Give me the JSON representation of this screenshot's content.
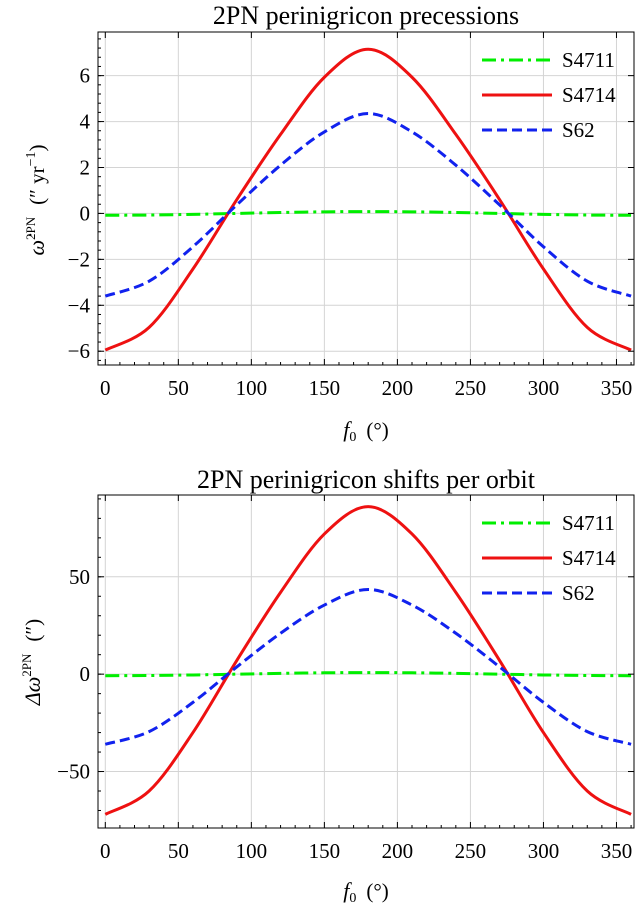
{
  "charts": [
    {
      "title": "2PN perinigricon precessions",
      "xlabel": {
        "sym": "f",
        "sub": "0",
        "unit": "(°)"
      },
      "ylabel": {
        "sym": "ω̇",
        "sup": "2PN",
        "unit_pre": "(″ yr",
        "unit_sup": "−1",
        "unit_post": ")"
      },
      "xticks": [
        "0",
        "50",
        "100",
        "150",
        "200",
        "250",
        "300",
        "350"
      ],
      "yticks": [
        "−6",
        "−4",
        "−2",
        "0",
        "2",
        "4",
        "6"
      ]
    },
    {
      "title": "2PN perinigricon shifts per orbit",
      "xlabel": {
        "sym": "f",
        "sub": "0",
        "unit": "(°)"
      },
      "ylabel": {
        "sym": "Δω",
        "sup": "2PN",
        "unit_pre": "(″)",
        "unit_sup": "",
        "unit_post": ""
      },
      "xticks": [
        "0",
        "50",
        "100",
        "150",
        "200",
        "250",
        "300",
        "350"
      ],
      "yticks": [
        "−50",
        "0",
        "50"
      ]
    }
  ],
  "legend": [
    "S4711",
    "S4714",
    "S62"
  ],
  "colors": {
    "S4711": "#00ee00",
    "S4714": "#ee1111",
    "S62": "#1122ee",
    "grid": "#d4d4d4"
  },
  "chart_data": [
    {
      "type": "line",
      "title": "2PN perinigricon precessions",
      "xlabel": "f0 (°)",
      "ylabel": "ω̇2PN (″ yr−1)",
      "xlim": [
        -5,
        362
      ],
      "ylim": [
        -6.6,
        7.9
      ],
      "xticks": [
        0,
        50,
        100,
        150,
        200,
        250,
        300,
        350
      ],
      "yticks": [
        -6,
        -4,
        -2,
        0,
        2,
        4,
        6
      ],
      "grid": true,
      "legend_position": "top-right",
      "x": [
        0,
        30,
        60,
        90,
        120,
        150,
        180,
        210,
        240,
        270,
        300,
        330,
        360
      ],
      "series": [
        {
          "name": "S4711",
          "style": "dot-dash",
          "values": [
            -0.08,
            -0.07,
            -0.04,
            0.0,
            0.04,
            0.07,
            0.08,
            0.07,
            0.04,
            0.0,
            -0.04,
            -0.07,
            -0.08
          ]
        },
        {
          "name": "S4714",
          "style": "solid",
          "values": [
            -5.95,
            -4.96,
            -2.42,
            0.6,
            3.44,
            5.93,
            7.15,
            5.93,
            3.44,
            0.6,
            -2.42,
            -4.96,
            -5.95
          ]
        },
        {
          "name": "S62",
          "style": "dashed",
          "values": [
            -3.6,
            -2.95,
            -1.45,
            0.37,
            2.1,
            3.55,
            4.35,
            3.55,
            2.1,
            0.37,
            -1.45,
            -2.95,
            -3.6
          ]
        }
      ]
    },
    {
      "type": "line",
      "title": "2PN perinigricon shifts per orbit",
      "xlabel": "f0 (°)",
      "ylabel": "Δω2PN (″)",
      "xlim": [
        -5,
        362
      ],
      "ylim": [
        -79,
        92
      ],
      "xticks": [
        0,
        50,
        100,
        150,
        200,
        250,
        300,
        350
      ],
      "yticks": [
        -50,
        0,
        50
      ],
      "grid": true,
      "legend_position": "top-right",
      "x": [
        0,
        30,
        60,
        90,
        120,
        150,
        180,
        210,
        240,
        270,
        300,
        330,
        360
      ],
      "series": [
        {
          "name": "S4711",
          "style": "dot-dash",
          "values": [
            -0.8,
            -0.7,
            -0.4,
            0.0,
            0.4,
            0.7,
            0.8,
            0.7,
            0.4,
            0.0,
            -0.4,
            -0.7,
            -0.8
          ]
        },
        {
          "name": "S4714",
          "style": "solid",
          "values": [
            -72,
            -60,
            -30,
            7,
            42,
            72,
            86,
            72,
            42,
            7,
            -30,
            -60,
            -72
          ]
        },
        {
          "name": "S62",
          "style": "dashed",
          "values": [
            -36,
            -29.5,
            -14.5,
            3.7,
            21,
            35.5,
            43.5,
            35.5,
            21,
            3.7,
            -14.5,
            -29.5,
            -36
          ]
        }
      ]
    }
  ]
}
